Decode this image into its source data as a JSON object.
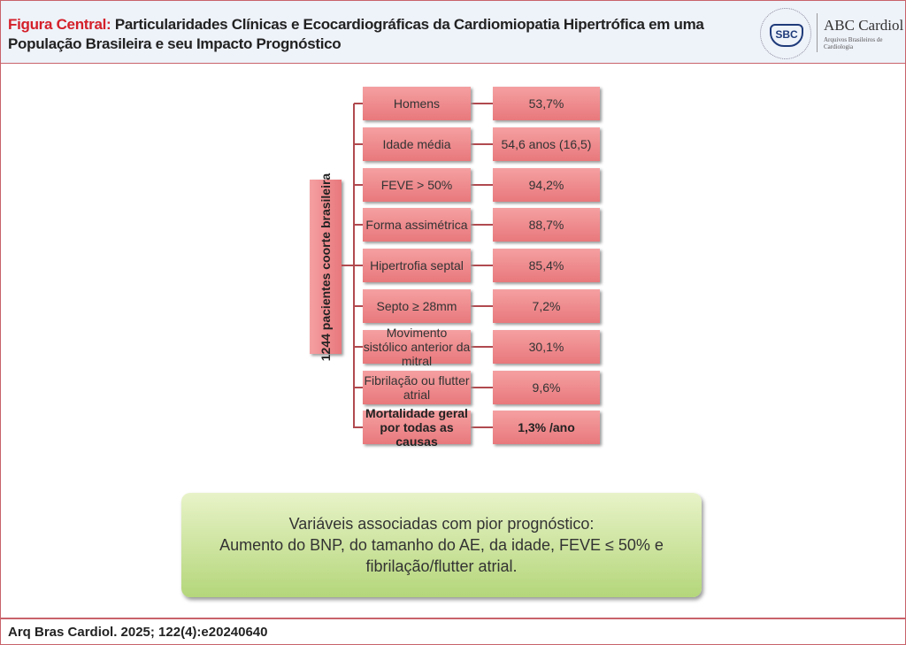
{
  "header": {
    "title_lead": "Figura Central:",
    "title_rest": " Particularidades Clínicas e Ecocardiográficas da Cardiomiopatia Hipertrófica em uma População Brasileira e seu Impacto Prognóstico",
    "logo_sbc": "SBC",
    "journal": "ABC Cardiol",
    "journal_sub": "Arquivos Brasileiros de Cardiologia"
  },
  "diagram": {
    "cohort": "1244 pacientes coorte brasileira",
    "rows": [
      {
        "label": "Homens",
        "value": "53,7%"
      },
      {
        "label": "Idade média",
        "value": "54,6 anos (16,5)"
      },
      {
        "label": "FEVE > 50%",
        "value": "94,2%"
      },
      {
        "label": "Forma assimétrica",
        "value": "88,7%"
      },
      {
        "label": "Hipertrofia septal",
        "value": "85,4%"
      },
      {
        "label": "Septo ≥ 28mm",
        "value": "7,2%"
      },
      {
        "label": "Movimento sistólico anterior da mitral",
        "value": "30,1%"
      },
      {
        "label": "Fibrilação ou flutter atrial",
        "value": "9,6%"
      },
      {
        "label": "Mortalidade geral por todas as causas",
        "value": "1,3% /ano",
        "bold": true
      }
    ],
    "colors": {
      "box": "#ec8488",
      "connector": "#b04a4f",
      "prognosis_box": "#c8e09a"
    }
  },
  "prognosis": {
    "line1": "Variáveis associadas com pior prognóstico:",
    "line2": "Aumento do BNP, do tamanho do AE, da idade, FEVE ≤ 50% e",
    "line3": "fibrilação/flutter atrial."
  },
  "footer": {
    "citation": "Arq Bras Cardiol. 2025; 122(4):e20240640"
  }
}
